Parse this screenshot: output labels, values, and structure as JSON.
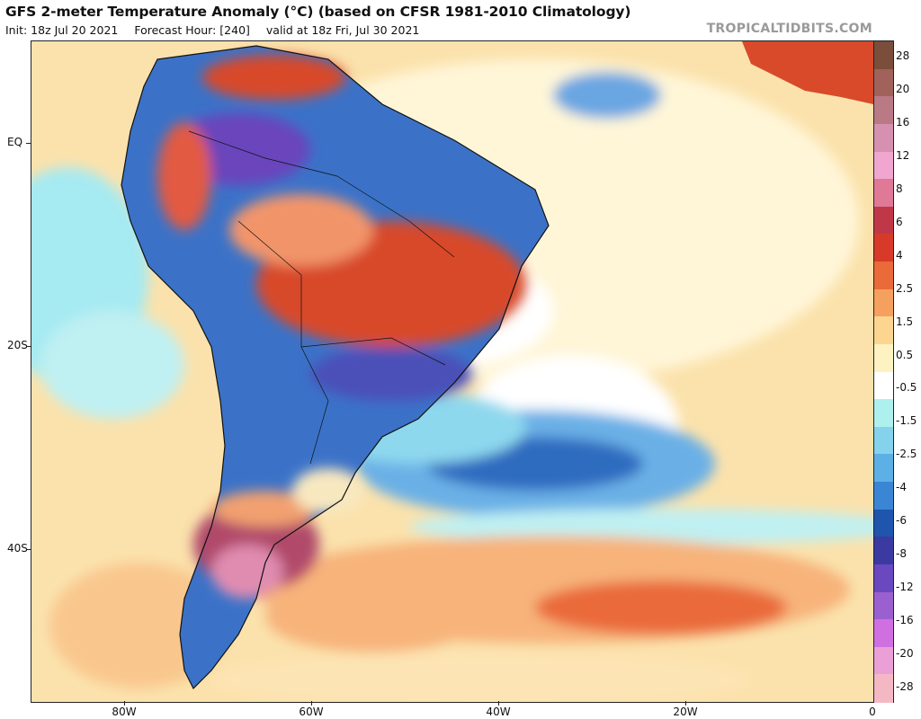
{
  "header": {
    "title": "GFS 2-meter Temperature Anomaly (°C) (based on CFSR 1981-2010 Climatology)",
    "init": "Init: 18z Jul 20 2021",
    "forecast_hour": "Forecast Hour: [240]",
    "valid": "valid at 18z Fri, Jul 30 2021",
    "credit": "TROPICALTIDBITS.COM"
  },
  "axes": {
    "lat_labels": [
      "EQ",
      "20S",
      "40S"
    ],
    "lon_labels": [
      "80W",
      "60W",
      "40W",
      "20W",
      "0"
    ]
  },
  "colorbar": {
    "labels": [
      "28",
      "20",
      "16",
      "12",
      "8",
      "6",
      "4",
      "2.5",
      "1.5",
      "0.5",
      "-0.5",
      "-1.5",
      "-2.5",
      "-4",
      "-6",
      "-8",
      "-12",
      "-16",
      "-20",
      "-28"
    ],
    "colors": [
      "#7a4e3a",
      "#a0625a",
      "#b97a85",
      "#d691b0",
      "#f0a6cf",
      "#e07898",
      "#c03848",
      "#d83a2a",
      "#ea6a3a",
      "#f6a060",
      "#fcd690",
      "#fdf3c2",
      "#ffffff",
      "#aef0ee",
      "#84d2ec",
      "#5cb0e6",
      "#3a86d4",
      "#1f55ac",
      "#3a3aa0",
      "#6a48c0",
      "#9a60d0",
      "#d070e0",
      "#eaa0d6",
      "#f4b8c4"
    ]
  }
}
